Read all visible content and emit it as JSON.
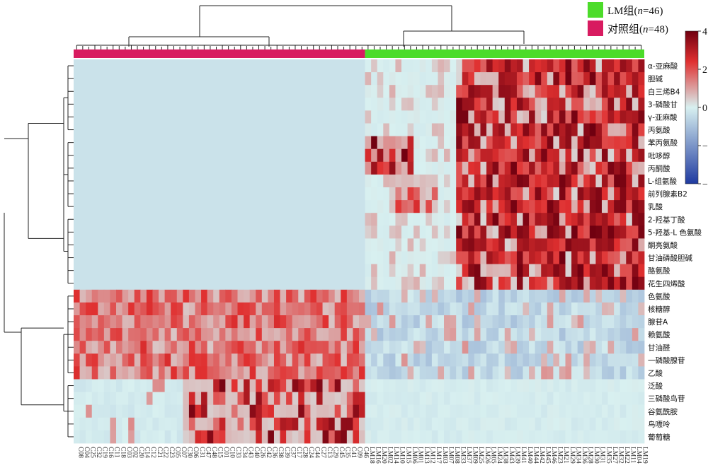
{
  "chart_data": {
    "type": "heatmap",
    "legend": [
      {
        "name_prefix": "LM组(",
        "n_var": "n",
        "name_suffix": "=46)",
        "color": "#4cdc2a"
      },
      {
        "name_prefix": "对照组(",
        "n_var": "n",
        "name_suffix": "=48)",
        "color": "#d81b60"
      }
    ],
    "colorscale": {
      "min": -4,
      "max": 4,
      "ticks": [
        "4",
        "2",
        "0",
        "−2",
        "−4"
      ],
      "tick_values": [
        4,
        2,
        0,
        -2,
        -4
      ],
      "colors": [
        "#1f3aa0",
        "#d8f0f0",
        "#e03030",
        "#700010"
      ]
    },
    "rows": [
      "α-亚麻酸",
      "胆碱",
      "白三烯B4",
      "3-磷酸甘",
      "γ-亚麻酸",
      "丙氨酸",
      "苯丙氨酸",
      "吡哆醇",
      "丙酮酸",
      "L-组氨酸",
      "前列腺素B2",
      "乳酸",
      "2-羟基丁酸",
      "5-羟基-L 色氨酸",
      "酮亮氨酸",
      "甘油磷酸胆碱",
      "酪氨酸",
      "花生四烯酸",
      "色氨酸",
      "核糖醇",
      "腺苷A",
      "赖氨酸",
      "甘油醛",
      "一磷酸腺苷",
      "乙酸",
      "泛酸",
      "三磷酸鸟苷",
      "谷氨酰胺",
      "鸟嘌呤",
      "葡萄糖"
    ],
    "columns": [
      "C08",
      "C04",
      "C25",
      "C32",
      "C19",
      "C16",
      "C11",
      "C18",
      "C03",
      "C02",
      "C20",
      "C14",
      "C12",
      "C21",
      "C22",
      "C23",
      "C05",
      "C07",
      "C30",
      "C06",
      "C31",
      "C47",
      "C48",
      "C15",
      "C01",
      "C10",
      "C33",
      "C34",
      "C43",
      "C40",
      "C26",
      "C42",
      "C36",
      "C38",
      "C39",
      "C37",
      "C17",
      "C28",
      "C24",
      "C44",
      "C27",
      "C13",
      "C29",
      "C45",
      "C35",
      "C41",
      "C09",
      "C46",
      "LM18",
      "LM16",
      "LM20",
      "LM02",
      "LM14",
      "LM10",
      "LM15",
      "LM06",
      "LM01",
      "LM13",
      "LM12",
      "LM17",
      "LM03",
      "LM07",
      "LM08",
      "LM33",
      "LM37",
      "LM09",
      "LM25",
      "LM26",
      "LM05",
      "LM24",
      "LM38",
      "LM43",
      "LM39",
      "LM41",
      "LM40",
      "LM44",
      "LM42",
      "LM45",
      "LM46",
      "LM23",
      "LM21",
      "LM29",
      "LM34",
      "LM36",
      "LM28",
      "LM30",
      "LM31",
      "LM35",
      "LM27",
      "LM32",
      "LM22",
      "LM11",
      "LM04",
      "LM19"
    ],
    "groups": {
      "control_count": 48,
      "lm_count": 46
    },
    "row_clusters": [
      {
        "rows": [
          0,
          17
        ],
        "pattern": "high_in_lm"
      },
      {
        "rows": [
          18,
          24
        ],
        "pattern": "high_in_control"
      },
      {
        "rows": [
          25,
          29
        ],
        "pattern": "high_in_control_subset"
      }
    ],
    "estimated_values": {
      "control_upper_block": -0.3,
      "lm_upper_block_range": [
        0,
        4
      ],
      "control_middle_block_range": [
        0.5,
        2.5
      ],
      "lm_middle_block": -0.6,
      "control_lower_block_range": [
        -0.3,
        4
      ],
      "lm_lower_block": -0.2
    }
  }
}
